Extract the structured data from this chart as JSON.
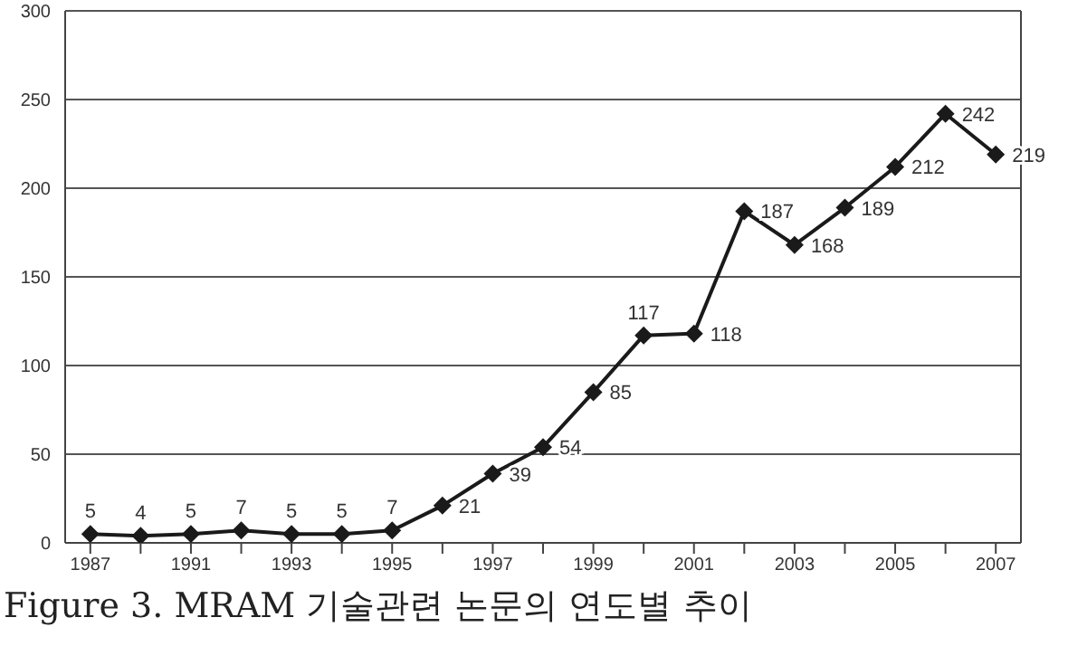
{
  "chart_data": {
    "type": "line",
    "title": "Figure 3. MRAM 기술관련 논문의 연도별 추이",
    "categories": [
      "1987",
      null,
      "1991",
      null,
      "1993",
      null,
      "1995",
      null,
      "1997",
      null,
      "1999",
      null,
      "2001",
      null,
      "2003",
      null,
      "2005",
      null,
      "2007"
    ],
    "series": [
      {
        "color": "#1a1a1a",
        "values": [
          5,
          4,
          5,
          7,
          5,
          5,
          7,
          21,
          39,
          54,
          85,
          117,
          118,
          187,
          168,
          189,
          212,
          242,
          219
        ]
      }
    ],
    "ylim": [
      0,
      300
    ],
    "yticks": [
      0,
      50,
      100,
      150,
      200,
      250,
      300
    ],
    "grid": "y",
    "marker": "diamond",
    "line_style": "solid",
    "data_labels": true,
    "legend": false
  }
}
